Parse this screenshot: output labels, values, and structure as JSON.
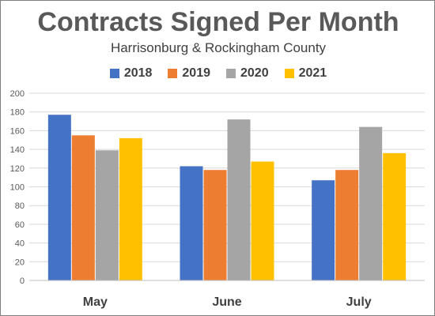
{
  "chart_data": {
    "type": "bar",
    "title": "Contracts Signed Per Month",
    "subtitle": "Harrisonburg & Rockingham County",
    "categories": [
      "May",
      "June",
      "July"
    ],
    "series": [
      {
        "name": "2018",
        "color": "#4472C4",
        "values": [
          177,
          122,
          107
        ]
      },
      {
        "name": "2019",
        "color": "#ED7D31",
        "values": [
          155,
          118,
          118
        ]
      },
      {
        "name": "2020",
        "color": "#A5A5A5",
        "values": [
          139,
          172,
          164
        ]
      },
      {
        "name": "2021",
        "color": "#FFC000",
        "values": [
          152,
          127,
          136
        ]
      }
    ],
    "ylim": [
      0,
      200
    ],
    "yticks": [
      0,
      20,
      40,
      60,
      80,
      100,
      120,
      140,
      160,
      180,
      200
    ],
    "grid": true,
    "legend": "top-center"
  }
}
